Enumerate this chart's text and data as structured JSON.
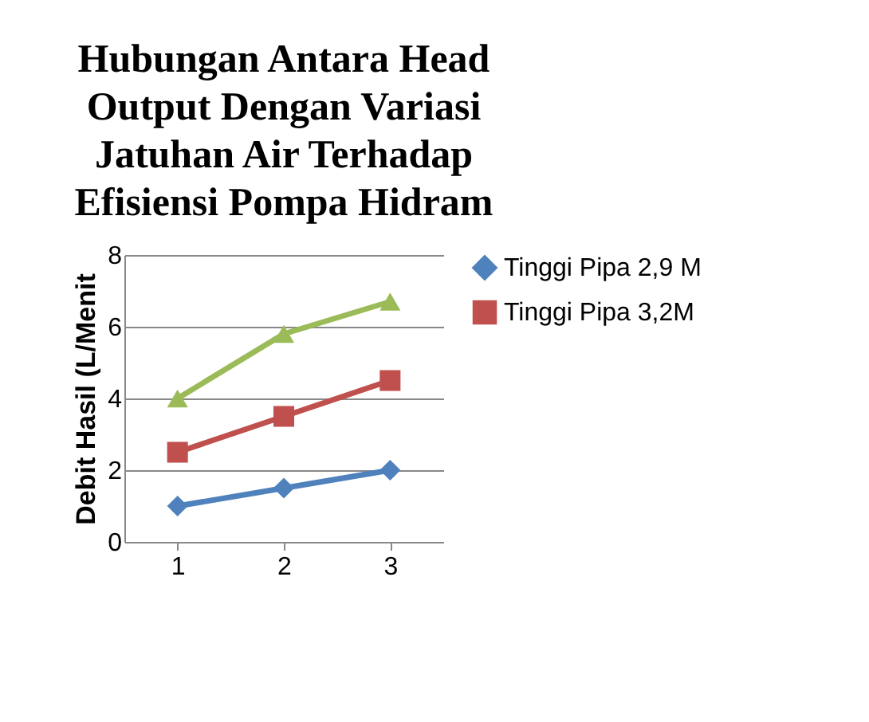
{
  "chart_data": {
    "type": "line",
    "title": "Hubungan Antara Head Output Dengan Variasi Jatuhan Air Terhadap Efisiensi Pompa Hidram",
    "ylabel": "Debit Hasil (L/Menit",
    "categories": [
      "1",
      "2",
      "3"
    ],
    "series": [
      {
        "name": "Tinggi Pipa 2,9 M",
        "color": "#4f81bd",
        "marker": "diamond",
        "values": [
          1,
          1.5,
          2
        ]
      },
      {
        "name": "Tinggi Pipa 3,2M",
        "color": "#c0504d",
        "marker": "square",
        "values": [
          2.5,
          3.5,
          4.5
        ]
      },
      {
        "color": "#9bbb59",
        "marker": "triangle",
        "values": [
          4,
          5.8,
          6.7
        ]
      }
    ],
    "ylim": [
      0,
      8
    ],
    "yticks": [
      0,
      2,
      4,
      6,
      8
    ],
    "grid": "y",
    "legend": "right"
  }
}
